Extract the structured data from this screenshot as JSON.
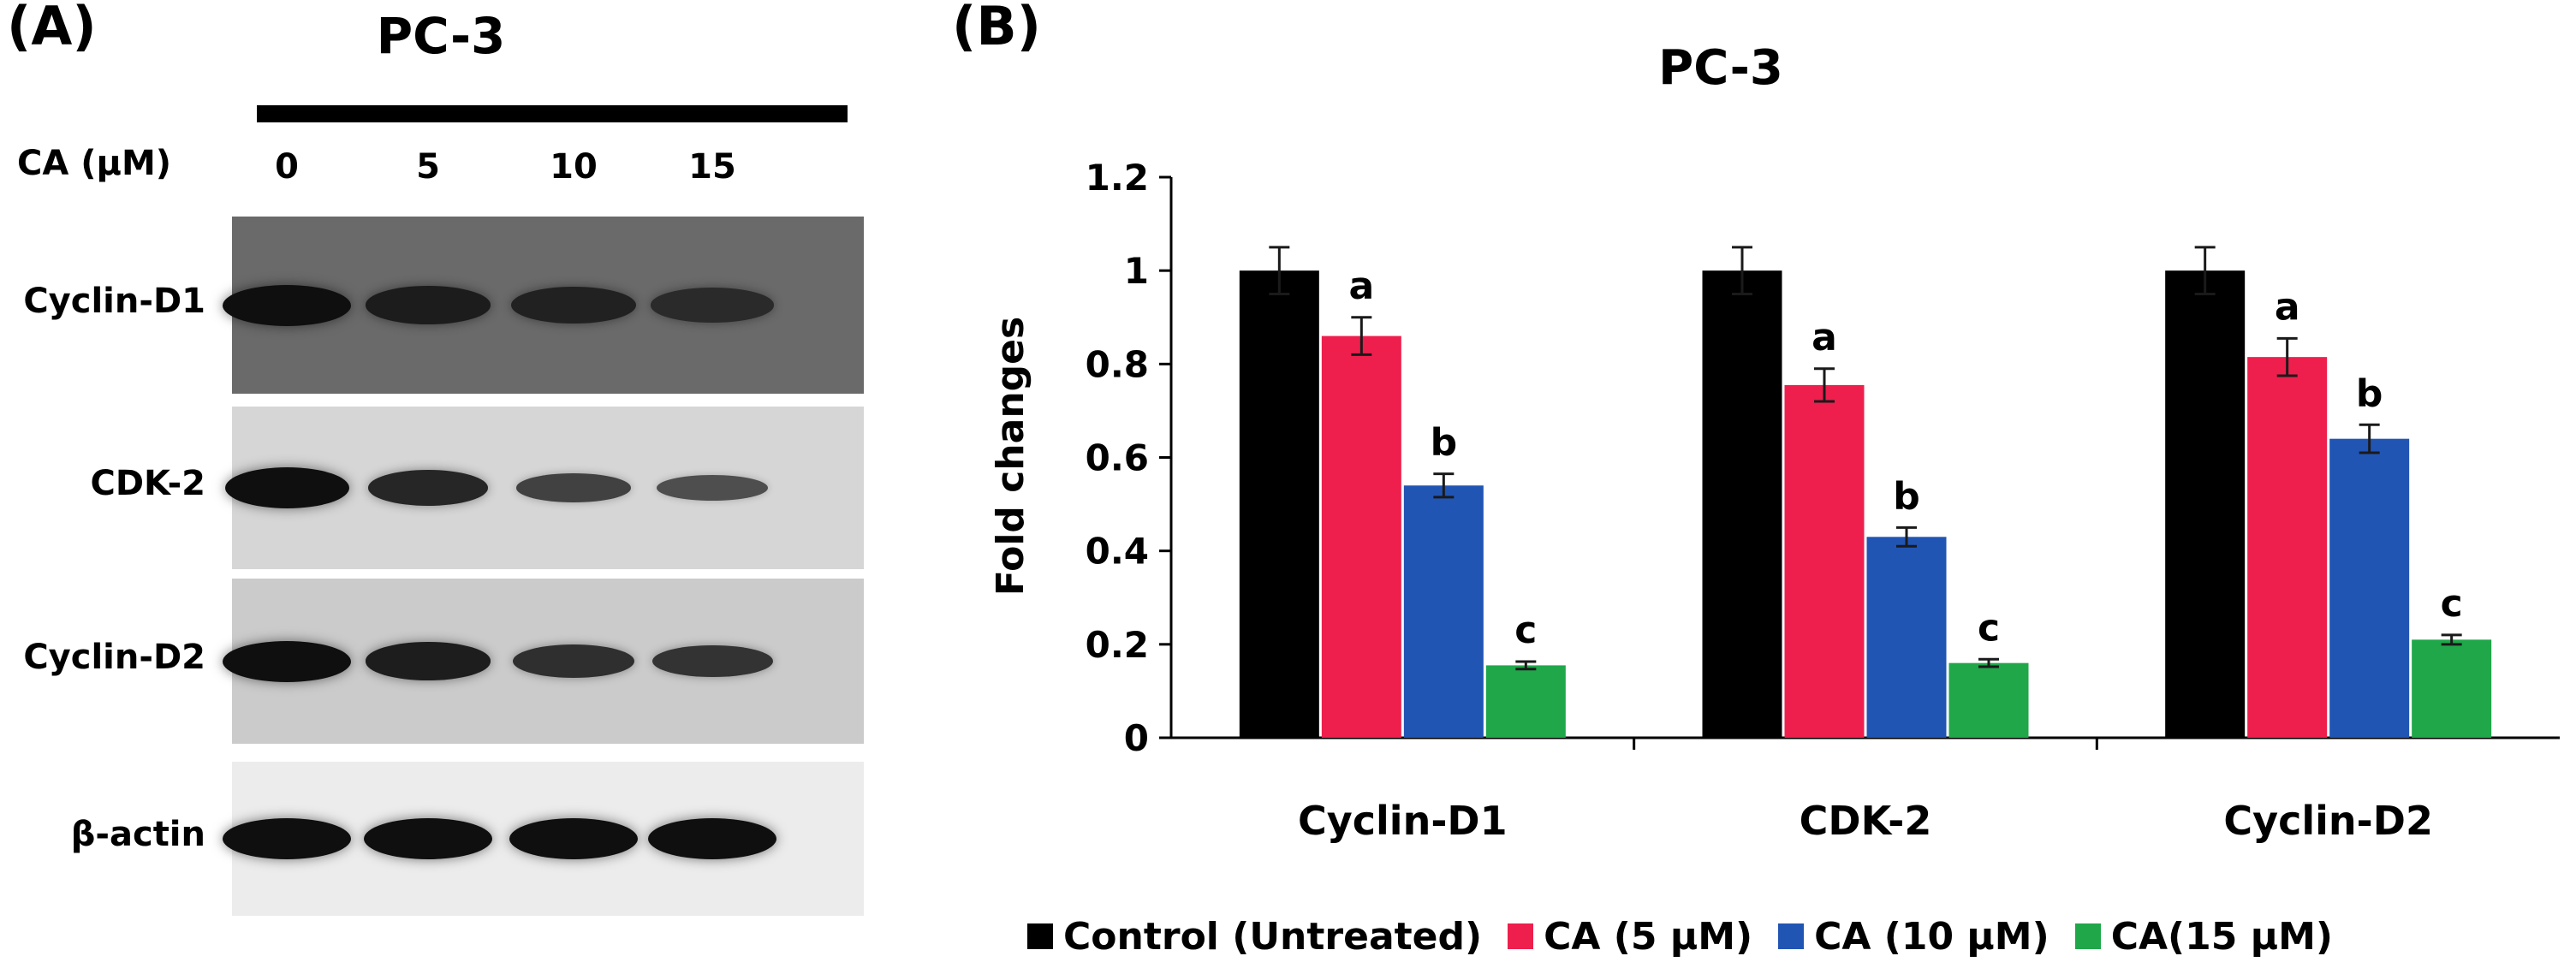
{
  "panel_a": {
    "label": "(A)",
    "title": "PC-3",
    "treatment_label": "CA (µM)",
    "lanes": [
      "0",
      "5",
      "10",
      "15"
    ],
    "rows": [
      {
        "label": "Cyclin-D1",
        "intensity": [
          1.0,
          0.86,
          0.8,
          0.7
        ]
      },
      {
        "label": "CDK-2",
        "intensity": [
          1.0,
          0.75,
          0.45,
          0.3
        ]
      },
      {
        "label": "Cyclin-D2",
        "intensity": [
          1.0,
          0.85,
          0.65,
          0.6
        ]
      },
      {
        "label": "β-actin",
        "intensity": [
          1.0,
          1.0,
          1.0,
          1.0
        ]
      }
    ]
  },
  "panel_b": {
    "label": "(B)"
  },
  "chart_data": {
    "type": "bar",
    "title": "PC-3",
    "ylabel": "Fold changes",
    "xlabel": "",
    "ylim": [
      0,
      1.2
    ],
    "yticks": [
      "0",
      "0.2",
      "0.4",
      "0.6",
      "0.8",
      "1",
      "1.2"
    ],
    "categories": [
      "Cyclin-D1",
      "CDK-2",
      "Cyclin-D2"
    ],
    "series": [
      {
        "name": "Control (Untreated)",
        "color": "#000000",
        "values": [
          1.0,
          1.0,
          1.0
        ],
        "errors": [
          0.05,
          0.05,
          0.05
        ],
        "labels": [
          "",
          "",
          ""
        ]
      },
      {
        "name": "CA (5 µM)",
        "color": "#ee1f4d",
        "values": [
          0.86,
          0.755,
          0.815
        ],
        "errors": [
          0.04,
          0.035,
          0.04
        ],
        "labels": [
          "a",
          "a",
          "a"
        ]
      },
      {
        "name": "CA (10 µM)",
        "color": "#2155b4",
        "values": [
          0.54,
          0.43,
          0.64
        ],
        "errors": [
          0.025,
          0.02,
          0.03
        ],
        "labels": [
          "b",
          "b",
          "b"
        ]
      },
      {
        "name": "CA(15 µM)",
        "color": "#1fa74a",
        "values": [
          0.155,
          0.16,
          0.21
        ],
        "errors": [
          0.008,
          0.008,
          0.01
        ],
        "labels": [
          "c",
          "c",
          "c"
        ]
      }
    ],
    "grid": false,
    "legend_position": "bottom"
  }
}
